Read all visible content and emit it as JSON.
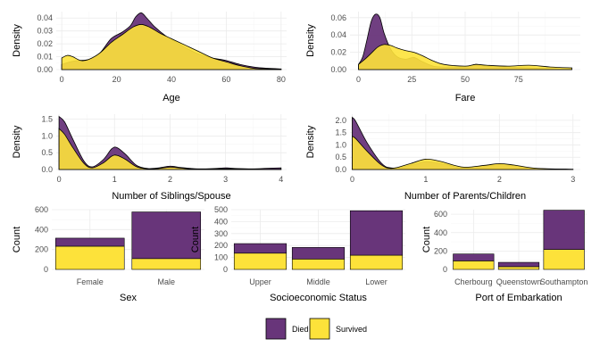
{
  "colors": {
    "died": "#68357a",
    "survived": "#fde23a",
    "outline": "#000000"
  },
  "legend": {
    "items": [
      {
        "key": "died",
        "label": "Died"
      },
      {
        "key": "survived",
        "label": "Survived"
      }
    ],
    "placement": "bottom"
  },
  "chart_data": [
    {
      "id": "age",
      "type": "area",
      "subtype": "density",
      "xlabel": "Age",
      "ylabel": "Density",
      "xlim": [
        -2,
        82
      ],
      "ylim": [
        0,
        0.045
      ],
      "xticks": [
        0,
        20,
        40,
        60,
        80
      ],
      "yticks": [
        0,
        0.01,
        0.02,
        0.03,
        0.04
      ],
      "ytick_labels": [
        "0.00",
        "0.01",
        "0.02",
        "0.03",
        "0.04"
      ],
      "series": [
        {
          "name": "Died",
          "x": [
            0,
            3,
            6,
            10,
            14,
            18,
            22,
            25,
            27,
            29,
            31,
            34,
            38,
            42,
            46,
            50,
            55,
            60,
            65,
            70,
            75,
            80
          ],
          "y": [
            0.004,
            0.006,
            0.007,
            0.008,
            0.013,
            0.024,
            0.029,
            0.034,
            0.041,
            0.044,
            0.04,
            0.033,
            0.026,
            0.021,
            0.016,
            0.012,
            0.009,
            0.007,
            0.004,
            0.002,
            0.001,
            0.0005
          ]
        },
        {
          "name": "Survived",
          "x": [
            0,
            2,
            4,
            7,
            10,
            14,
            18,
            22,
            26,
            29,
            32,
            36,
            40,
            45,
            50,
            55,
            60,
            65,
            70,
            75,
            80
          ],
          "y": [
            0.009,
            0.011,
            0.01,
            0.007,
            0.008,
            0.013,
            0.021,
            0.027,
            0.033,
            0.035,
            0.033,
            0.028,
            0.024,
            0.019,
            0.014,
            0.009,
            0.006,
            0.003,
            0.001,
            0.0005,
            0.0002
          ]
        }
      ]
    },
    {
      "id": "fare",
      "type": "area",
      "subtype": "density",
      "xlabel": "Fare",
      "ylabel": "Density",
      "xlim": [
        -4,
        104
      ],
      "ylim": [
        0,
        0.067
      ],
      "xticks": [
        0,
        25,
        50,
        75
      ],
      "yticks": [
        0,
        0.02,
        0.04,
        0.06
      ],
      "ytick_labels": [
        "0.00",
        "0.02",
        "0.04",
        "0.06"
      ],
      "series": [
        {
          "name": "Died",
          "x": [
            0,
            2,
            4,
            6,
            8,
            10,
            12,
            15,
            18,
            22,
            26,
            30,
            35,
            40,
            50,
            55,
            60,
            70,
            80,
            90,
            100
          ],
          "y": [
            0.006,
            0.015,
            0.035,
            0.056,
            0.064,
            0.06,
            0.042,
            0.024,
            0.015,
            0.012,
            0.014,
            0.009,
            0.004,
            0.003,
            0.003,
            0.006,
            0.004,
            0.003,
            0.002,
            0.001,
            0.0005
          ]
        },
        {
          "name": "Survived",
          "x": [
            0,
            3,
            6,
            9,
            12,
            15,
            18,
            22,
            26,
            30,
            35,
            40,
            50,
            55,
            60,
            70,
            80,
            90,
            100
          ],
          "y": [
            0.006,
            0.012,
            0.019,
            0.026,
            0.029,
            0.028,
            0.025,
            0.022,
            0.02,
            0.016,
            0.01,
            0.006,
            0.004,
            0.006,
            0.005,
            0.004,
            0.005,
            0.003,
            0.002
          ]
        }
      ]
    },
    {
      "id": "sibsp",
      "type": "area",
      "subtype": "density",
      "xlabel": "Number of Siblings/Spouse",
      "ylabel": "Density",
      "xlim": [
        -0.05,
        4.1
      ],
      "ylim": [
        0,
        1.65
      ],
      "xticks": [
        0,
        1,
        2,
        3,
        4
      ],
      "yticks": [
        0,
        0.5,
        1,
        1.5
      ],
      "ytick_labels": [
        "0.0",
        "0.5",
        "1.0",
        "1.5"
      ],
      "series": [
        {
          "name": "Died",
          "x": [
            0,
            0.1,
            0.25,
            0.45,
            0.6,
            0.8,
            0.95,
            1.05,
            1.2,
            1.4,
            1.6,
            1.8,
            2,
            2.2,
            2.5,
            2.8,
            3,
            3.2,
            3.5,
            3.8,
            4
          ],
          "y": [
            1.58,
            1.42,
            0.9,
            0.25,
            0.08,
            0.3,
            0.62,
            0.65,
            0.45,
            0.12,
            0.03,
            0.05,
            0.1,
            0.06,
            0.02,
            0.03,
            0.05,
            0.03,
            0.02,
            0.04,
            0.05
          ]
        },
        {
          "name": "Survived",
          "x": [
            0,
            0.1,
            0.25,
            0.45,
            0.6,
            0.8,
            0.95,
            1.05,
            1.2,
            1.4,
            1.6,
            1.8,
            2,
            2.2,
            2.5,
            3,
            3.5,
            4
          ],
          "y": [
            1.22,
            1.05,
            0.65,
            0.18,
            0.05,
            0.2,
            0.4,
            0.42,
            0.3,
            0.08,
            0.02,
            0.03,
            0.07,
            0.04,
            0.01,
            0.02,
            0.01,
            0.005
          ]
        }
      ]
    },
    {
      "id": "parch",
      "type": "area",
      "subtype": "density",
      "xlabel": "Number of Parents/Children",
      "ylabel": "Density",
      "xlim": [
        -0.03,
        3.1
      ],
      "ylim": [
        0,
        2.25
      ],
      "xticks": [
        0,
        1,
        2,
        3
      ],
      "yticks": [
        0,
        0.5,
        1,
        1.5,
        2
      ],
      "ytick_labels": [
        "0.0",
        "0.5",
        "1.0",
        "1.5",
        "2.0"
      ],
      "series": [
        {
          "name": "Died",
          "x": [
            0,
            0.05,
            0.2,
            0.4,
            0.55,
            0.8,
            1,
            1.2,
            1.5,
            1.8,
            2,
            2.2,
            2.5,
            3
          ],
          "y": [
            2.12,
            1.95,
            1.1,
            0.25,
            0.06,
            0.18,
            0.32,
            0.25,
            0.07,
            0.16,
            0.22,
            0.16,
            0.04,
            0.01
          ]
        },
        {
          "name": "Survived",
          "x": [
            0,
            0.05,
            0.2,
            0.4,
            0.55,
            0.8,
            1,
            1.2,
            1.5,
            1.8,
            2,
            2.2,
            2.5,
            3
          ],
          "y": [
            1.35,
            1.25,
            0.75,
            0.18,
            0.05,
            0.25,
            0.42,
            0.33,
            0.1,
            0.17,
            0.24,
            0.18,
            0.05,
            0.01
          ]
        }
      ]
    },
    {
      "id": "sex",
      "type": "bar",
      "stacked": true,
      "xlabel": "Sex",
      "ylabel": "Count",
      "ylim": [
        0,
        600
      ],
      "yticks": [
        0,
        200,
        400,
        600
      ],
      "ytick_labels": [
        "0",
        "200",
        "400",
        "600"
      ],
      "categories": [
        "Female",
        "Male"
      ],
      "series": [
        {
          "name": "Died",
          "values": [
            81,
            468
          ]
        },
        {
          "name": "Survived",
          "values": [
            233,
            109
          ]
        }
      ]
    },
    {
      "id": "pclass",
      "type": "bar",
      "stacked": true,
      "xlabel": "Socioeconomic Status",
      "ylabel": "Count",
      "ylim": [
        0,
        500
      ],
      "yticks": [
        0,
        100,
        200,
        300,
        400,
        500
      ],
      "ytick_labels": [
        "0",
        "100",
        "200",
        "300",
        "400",
        "500"
      ],
      "categories": [
        "Upper",
        "Middle",
        "Lower"
      ],
      "series": [
        {
          "name": "Died",
          "values": [
            80,
            97,
            372
          ]
        },
        {
          "name": "Survived",
          "values": [
            136,
            87,
            119
          ]
        }
      ]
    },
    {
      "id": "embarked",
      "type": "bar",
      "stacked": true,
      "xlabel": "Port of Embarkation",
      "ylabel": "Count",
      "ylim": [
        0,
        650
      ],
      "yticks": [
        0,
        200,
        400,
        600
      ],
      "ytick_labels": [
        "0",
        "200",
        "400",
        "600"
      ],
      "categories": [
        "Cherbourg",
        "Queenstown",
        "Southampton"
      ],
      "series": [
        {
          "name": "Died",
          "values": [
            75,
            47,
            427
          ]
        },
        {
          "name": "Survived",
          "values": [
            93,
            30,
            217
          ]
        }
      ]
    }
  ]
}
